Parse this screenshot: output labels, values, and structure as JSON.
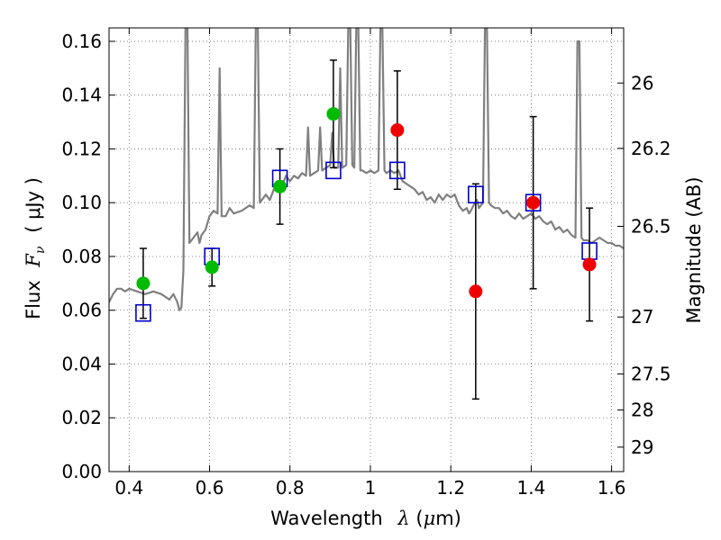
{
  "chart_data": {
    "type": "scatter",
    "xlabel_parts": {
      "text": "Wavelength",
      "symbol": "λ",
      "unit_open": " (",
      "unit_mu": "μ",
      "unit_rest": "m)"
    },
    "ylabel_parts": {
      "text": "Flux",
      "symbol": "F",
      "sub": "ν",
      "unit": "( μJy )"
    },
    "y2label": "Magnitude (AB)",
    "xlim": [
      0.35,
      1.63
    ],
    "ylim": [
      0.0,
      0.165
    ],
    "grid": true,
    "x_ticks": [
      0.4,
      0.6,
      0.8,
      1.0,
      1.2,
      1.4,
      1.6
    ],
    "x_tick_labels": [
      "0.4",
      "0.6",
      "0.8",
      "1",
      "1.2",
      "1.4",
      "1.6"
    ],
    "y_ticks": [
      0.0,
      0.02,
      0.04,
      0.06,
      0.08,
      0.1,
      0.12,
      0.14,
      0.16
    ],
    "y_tick_labels": [
      "0.00",
      "0.02",
      "0.04",
      "0.06",
      "0.08",
      "0.10",
      "0.12",
      "0.14",
      "0.16"
    ],
    "y2_ticks": [
      {
        "label": "26",
        "flux": 0.1445
      },
      {
        "label": "26.2",
        "flux": 0.1202
      },
      {
        "label": "26.5",
        "flux": 0.0912
      },
      {
        "label": "27",
        "flux": 0.0575
      },
      {
        "label": "27.5",
        "flux": 0.0363
      },
      {
        "label": "28",
        "flux": 0.0229
      },
      {
        "label": "29",
        "flux": 0.0091
      }
    ],
    "model_color": "#808080",
    "model_spectrum": [
      [
        0.35,
        0.063
      ],
      [
        0.36,
        0.066
      ],
      [
        0.37,
        0.068
      ],
      [
        0.38,
        0.068
      ],
      [
        0.39,
        0.067
      ],
      [
        0.4,
        0.068
      ],
      [
        0.42,
        0.067
      ],
      [
        0.44,
        0.066
      ],
      [
        0.46,
        0.067
      ],
      [
        0.48,
        0.066
      ],
      [
        0.5,
        0.064
      ],
      [
        0.51,
        0.066
      ],
      [
        0.52,
        0.063
      ],
      [
        0.525,
        0.06
      ],
      [
        0.53,
        0.061
      ],
      [
        0.535,
        0.075
      ],
      [
        0.54,
        0.165
      ],
      [
        0.545,
        0.165
      ],
      [
        0.55,
        0.085
      ],
      [
        0.56,
        0.087
      ],
      [
        0.57,
        0.089
      ],
      [
        0.575,
        0.085
      ],
      [
        0.58,
        0.088
      ],
      [
        0.59,
        0.09
      ],
      [
        0.6,
        0.095
      ],
      [
        0.61,
        0.097
      ],
      [
        0.62,
        0.096
      ],
      [
        0.625,
        0.15
      ],
      [
        0.63,
        0.095
      ],
      [
        0.64,
        0.095
      ],
      [
        0.65,
        0.098
      ],
      [
        0.66,
        0.096
      ],
      [
        0.68,
        0.097
      ],
      [
        0.7,
        0.099
      ],
      [
        0.71,
        0.098
      ],
      [
        0.715,
        0.165
      ],
      [
        0.72,
        0.165
      ],
      [
        0.725,
        0.1
      ],
      [
        0.74,
        0.103
      ],
      [
        0.75,
        0.101
      ],
      [
        0.76,
        0.105
      ],
      [
        0.77,
        0.107
      ],
      [
        0.78,
        0.106
      ],
      [
        0.79,
        0.11
      ],
      [
        0.8,
        0.108
      ],
      [
        0.81,
        0.11
      ],
      [
        0.82,
        0.109
      ],
      [
        0.83,
        0.111
      ],
      [
        0.84,
        0.11
      ],
      [
        0.845,
        0.128
      ],
      [
        0.85,
        0.11
      ],
      [
        0.86,
        0.111
      ],
      [
        0.87,
        0.112
      ],
      [
        0.875,
        0.128
      ],
      [
        0.88,
        0.112
      ],
      [
        0.89,
        0.113
      ],
      [
        0.9,
        0.114
      ],
      [
        0.905,
        0.126
      ],
      [
        0.91,
        0.113
      ],
      [
        0.92,
        0.113
      ],
      [
        0.925,
        0.15
      ],
      [
        0.93,
        0.113
      ],
      [
        0.94,
        0.114
      ],
      [
        0.945,
        0.165
      ],
      [
        0.95,
        0.165
      ],
      [
        0.955,
        0.114
      ],
      [
        0.96,
        0.113
      ],
      [
        0.965,
        0.165
      ],
      [
        0.97,
        0.165
      ],
      [
        0.975,
        0.112
      ],
      [
        0.98,
        0.112
      ],
      [
        0.99,
        0.111
      ],
      [
        1.0,
        0.112
      ],
      [
        1.01,
        0.111
      ],
      [
        1.02,
        0.112
      ],
      [
        1.025,
        0.165
      ],
      [
        1.03,
        0.165
      ],
      [
        1.035,
        0.112
      ],
      [
        1.04,
        0.111
      ],
      [
        1.05,
        0.112
      ],
      [
        1.06,
        0.111
      ],
      [
        1.07,
        0.112
      ],
      [
        1.08,
        0.108
      ],
      [
        1.09,
        0.107
      ],
      [
        1.1,
        0.106
      ],
      [
        1.11,
        0.105
      ],
      [
        1.12,
        0.103
      ],
      [
        1.13,
        0.104
      ],
      [
        1.14,
        0.101
      ],
      [
        1.15,
        0.102
      ],
      [
        1.16,
        0.1
      ],
      [
        1.17,
        0.103
      ],
      [
        1.18,
        0.101
      ],
      [
        1.19,
        0.103
      ],
      [
        1.2,
        0.102
      ],
      [
        1.21,
        0.103
      ],
      [
        1.22,
        0.099
      ],
      [
        1.23,
        0.097
      ],
      [
        1.24,
        0.098
      ],
      [
        1.245,
        0.096
      ],
      [
        1.25,
        0.097
      ],
      [
        1.26,
        0.1
      ],
      [
        1.265,
        0.101
      ],
      [
        1.27,
        0.098
      ],
      [
        1.28,
        0.1
      ],
      [
        1.285,
        0.165
      ],
      [
        1.29,
        0.165
      ],
      [
        1.295,
        0.1
      ],
      [
        1.3,
        0.099
      ],
      [
        1.31,
        0.098
      ],
      [
        1.32,
        0.098
      ],
      [
        1.33,
        0.096
      ],
      [
        1.34,
        0.097
      ],
      [
        1.35,
        0.095
      ],
      [
        1.36,
        0.094
      ],
      [
        1.37,
        0.096
      ],
      [
        1.38,
        0.094
      ],
      [
        1.39,
        0.095
      ],
      [
        1.4,
        0.096
      ],
      [
        1.41,
        0.094
      ],
      [
        1.42,
        0.095
      ],
      [
        1.43,
        0.093
      ],
      [
        1.44,
        0.092
      ],
      [
        1.45,
        0.093
      ],
      [
        1.46,
        0.09
      ],
      [
        1.47,
        0.091
      ],
      [
        1.48,
        0.089
      ],
      [
        1.49,
        0.09
      ],
      [
        1.5,
        0.088
      ],
      [
        1.51,
        0.087
      ],
      [
        1.515,
        0.16
      ],
      [
        1.52,
        0.16
      ],
      [
        1.525,
        0.087
      ],
      [
        1.53,
        0.086
      ],
      [
        1.54,
        0.086
      ],
      [
        1.55,
        0.085
      ],
      [
        1.56,
        0.086
      ],
      [
        1.57,
        0.087
      ],
      [
        1.58,
        0.086
      ],
      [
        1.59,
        0.085
      ],
      [
        1.6,
        0.085
      ],
      [
        1.61,
        0.084
      ],
      [
        1.62,
        0.084
      ],
      [
        1.63,
        0.083
      ]
    ],
    "model_bands": {
      "color": "#0000cc",
      "points": [
        {
          "x": 0.435,
          "y": 0.059
        },
        {
          "x": 0.606,
          "y": 0.08
        },
        {
          "x": 0.775,
          "y": 0.109
        },
        {
          "x": 0.908,
          "y": 0.112
        },
        {
          "x": 1.067,
          "y": 0.112
        },
        {
          "x": 1.262,
          "y": 0.103
        },
        {
          "x": 1.405,
          "y": 0.1
        },
        {
          "x": 1.545,
          "y": 0.082
        }
      ]
    },
    "observed_green": {
      "color": "#00bb00",
      "points": [
        {
          "x": 0.435,
          "y": 0.07,
          "err": 0.013
        },
        {
          "x": 0.606,
          "y": 0.076,
          "err": 0.007
        },
        {
          "x": 0.775,
          "y": 0.106,
          "err": 0.014
        },
        {
          "x": 0.908,
          "y": 0.133,
          "err": 0.02
        }
      ]
    },
    "observed_red": {
      "color": "#ee0000",
      "points": [
        {
          "x": 1.067,
          "y": 0.127,
          "err": 0.022
        },
        {
          "x": 1.262,
          "y": 0.067,
          "err": 0.04
        },
        {
          "x": 1.405,
          "y": 0.1,
          "err": 0.032
        },
        {
          "x": 1.545,
          "y": 0.077,
          "err": 0.021
        }
      ]
    }
  }
}
